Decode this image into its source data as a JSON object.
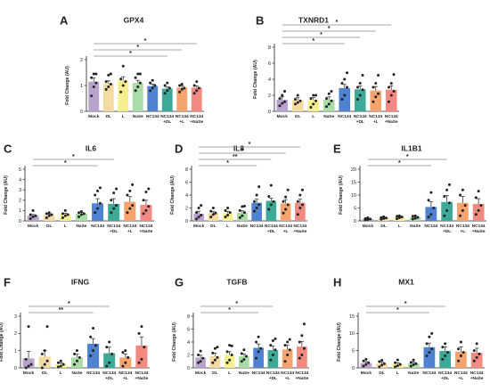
{
  "colors": {
    "bars": [
      "#b9a3cc",
      "#f3dba2",
      "#f5f08f",
      "#a9dca6",
      "#4f83d2",
      "#3daa98",
      "#f4a46c",
      "#f28a82"
    ],
    "ink": "#222222",
    "sig": "#8a8a8a"
  },
  "x_tick_labels": [
    [
      "Mock"
    ],
    [
      "DL"
    ],
    [
      "L"
    ],
    [
      "NaSe"
    ],
    [
      "NC134"
    ],
    [
      "NC134",
      "+DL"
    ],
    [
      "NC134",
      "+L"
    ],
    [
      "NC134",
      "+NaSe"
    ]
  ],
  "chart_data": [
    {
      "panel": "A",
      "type": "bar",
      "title": "GPX4",
      "ylabel": "Fold Change (AU)",
      "categories": [
        "Mock",
        "DL",
        "L",
        "NaSe",
        "NC134",
        "NC134+DL",
        "NC134+L",
        "NC134+NaSe"
      ],
      "values": [
        1.15,
        1.08,
        1.2,
        1.1,
        0.98,
        0.88,
        0.92,
        0.92
      ],
      "errors": [
        0.14,
        0.1,
        0.14,
        0.1,
        0.07,
        0.06,
        0.06,
        0.07
      ],
      "points": [
        [
          0.6,
          0.95,
          1.1,
          1.3,
          1.45,
          1.45
        ],
        [
          0.85,
          0.95,
          1.05,
          1.15,
          1.4,
          1.45
        ],
        [
          0.75,
          1.0,
          1.15,
          1.25,
          1.75
        ],
        [
          0.8,
          0.95,
          1.1,
          1.3,
          1.45,
          1.45
        ],
        [
          0.8,
          0.9,
          1.0,
          1.1,
          1.2
        ],
        [
          0.7,
          0.8,
          0.9,
          1.0,
          1.1
        ],
        [
          0.75,
          0.85,
          0.9,
          1.0,
          1.05
        ],
        [
          0.7,
          0.8,
          0.9,
          1.0,
          1.15
        ]
      ],
      "ylim": [
        0,
        2
      ],
      "yticks": [
        0,
        1,
        2
      ],
      "sig": [
        {
          "from": 0,
          "to": 7,
          "label": "*"
        },
        {
          "from": 0,
          "to": 6,
          "label": "*"
        },
        {
          "from": 0,
          "to": 5,
          "label": "*"
        }
      ]
    },
    {
      "panel": "B",
      "type": "bar",
      "title": "TXNRD1",
      "ylabel": "Fold Change (AU)",
      "categories": [
        "Mock",
        "DL",
        "L",
        "NaSe",
        "NC134",
        "NC134+DL",
        "NC134+L",
        "NC134+NaSe"
      ],
      "values": [
        1.45,
        1.4,
        1.4,
        1.45,
        2.9,
        2.75,
        2.6,
        2.7
      ],
      "errors": [
        0.35,
        0.3,
        0.3,
        0.35,
        0.45,
        0.4,
        0.5,
        0.5
      ],
      "points": [
        [
          0.7,
          1.0,
          1.2,
          1.6,
          2.0,
          2.5
        ],
        [
          0.9,
          1.1,
          1.3,
          1.5,
          2.0
        ],
        [
          0.5,
          0.9,
          1.3,
          1.6,
          2.0,
          2.0
        ],
        [
          0.6,
          0.9,
          1.3,
          1.6,
          2.2,
          2.5
        ],
        [
          1.5,
          2.0,
          3.0,
          3.5,
          4.0,
          4.8
        ],
        [
          1.5,
          2.0,
          2.7,
          3.0,
          3.5,
          4.5
        ],
        [
          1.2,
          1.8,
          2.2,
          3.0,
          3.5,
          4.5
        ],
        [
          1.2,
          2.0,
          2.5,
          3.0,
          3.5,
          4.6
        ]
      ],
      "ylim": [
        0,
        8
      ],
      "yticks": [
        0,
        2,
        4,
        6,
        8
      ],
      "sig": [
        {
          "from": 0,
          "to": 7,
          "label": "*"
        },
        {
          "from": 0,
          "to": 6,
          "label": "*"
        },
        {
          "from": 0,
          "to": 5,
          "label": "*"
        },
        {
          "from": 0,
          "to": 4,
          "label": "*"
        }
      ]
    },
    {
      "panel": "C",
      "type": "bar",
      "title": "IL6",
      "ylabel": "Fold Change (AU)",
      "categories": [
        "Mock",
        "DL",
        "L",
        "NaSe",
        "NC134",
        "NC134+DL",
        "NC134+L",
        "NC134+NaSe"
      ],
      "values": [
        0.5,
        0.55,
        0.65,
        0.7,
        1.7,
        1.65,
        1.85,
        1.55
      ],
      "errors": [
        0.12,
        0.12,
        0.1,
        0.12,
        0.45,
        0.5,
        0.5,
        0.45
      ],
      "points": [
        [
          0.2,
          0.4,
          0.5,
          0.6,
          1.0
        ],
        [
          0.3,
          0.5,
          0.6,
          0.7,
          0.8
        ],
        [
          0.3,
          0.5,
          0.6,
          0.7,
          1.0
        ],
        [
          0.4,
          0.6,
          0.7,
          0.8,
          0.9
        ],
        [
          0.8,
          1.2,
          1.7,
          2.5,
          2.9,
          3.2
        ],
        [
          0.8,
          1.2,
          1.5,
          2.0,
          2.7,
          3.1
        ],
        [
          0.8,
          1.2,
          1.5,
          2.5,
          2.9,
          3.5
        ],
        [
          0.7,
          1.0,
          1.4,
          2.0,
          2.8,
          3.1
        ]
      ],
      "ylim": [
        0,
        5
      ],
      "yticks": [
        0,
        1,
        2,
        3,
        4,
        5
      ],
      "sig": [
        {
          "from": 0,
          "to": 5,
          "label": "*"
        },
        {
          "from": 0,
          "to": 4,
          "label": "*"
        }
      ]
    },
    {
      "panel": "D",
      "type": "bar",
      "title": "IL8",
      "ylabel": "Fold Change (AU)",
      "categories": [
        "Mock",
        "DL",
        "L",
        "NaSe",
        "NC134",
        "NC134+DL",
        "NC134+L",
        "NC134+NaSe"
      ],
      "values": [
        1.1,
        1.2,
        1.2,
        1.25,
        2.8,
        3.1,
        2.7,
        2.8
      ],
      "errors": [
        0.4,
        0.25,
        0.25,
        0.3,
        0.55,
        0.4,
        0.6,
        0.55
      ],
      "points": [
        [
          0.3,
          0.6,
          0.9,
          1.3,
          2.0,
          2.4
        ],
        [
          0.6,
          1.0,
          1.2,
          1.5,
          2.0
        ],
        [
          0.6,
          0.9,
          1.3,
          1.6,
          2.0
        ],
        [
          0.5,
          0.8,
          1.3,
          1.6,
          2.2,
          2.3
        ],
        [
          1.5,
          2.0,
          2.5,
          3.0,
          4.0,
          5.3
        ],
        [
          1.8,
          2.5,
          3.0,
          3.8,
          5.5
        ],
        [
          1.2,
          1.8,
          2.5,
          3.0,
          3.7,
          4.8
        ],
        [
          1.0,
          2.0,
          2.5,
          3.0,
          4.0,
          4.8
        ]
      ],
      "ylim": [
        0,
        8
      ],
      "yticks": [
        0,
        2,
        4,
        6,
        8
      ],
      "sig": [
        {
          "from": 0,
          "to": 7,
          "label": "*"
        },
        {
          "from": 0,
          "to": 6,
          "label": "*"
        },
        {
          "from": 0,
          "to": 5,
          "label": "**"
        },
        {
          "from": 0,
          "to": 4,
          "label": "*"
        }
      ]
    },
    {
      "panel": "E",
      "type": "bar",
      "title": "IL1B1",
      "ylabel": "Fold Change (AU)",
      "categories": [
        "Mock",
        "DL",
        "L",
        "NaSe",
        "NC134",
        "NC134+DL",
        "NC134+L",
        "NC134+NaSe"
      ],
      "values": [
        0.7,
        1.1,
        1.4,
        1.4,
        5.4,
        7.3,
        7.0,
        6.6
      ],
      "errors": [
        0.2,
        0.3,
        0.3,
        0.35,
        2.0,
        2.5,
        2.5,
        2.0
      ],
      "points": [
        [
          0.3,
          0.5,
          0.7,
          0.9,
          1.2
        ],
        [
          0.6,
          0.9,
          1.1,
          1.3,
          1.6
        ],
        [
          0.8,
          1.2,
          1.5,
          1.8,
          2.0
        ],
        [
          0.7,
          1.0,
          1.4,
          1.8,
          2.0
        ],
        [
          1.5,
          2.5,
          5.0,
          8.0,
          11.0
        ],
        [
          2.0,
          4.0,
          7.0,
          9.5,
          12.0,
          14.0
        ],
        [
          2.0,
          4.0,
          6.0,
          10.0,
          12.0
        ],
        [
          2.5,
          4.0,
          6.0,
          9.0,
          11.5
        ]
      ],
      "ylim": [
        0,
        20
      ],
      "yticks": [
        0,
        5,
        10,
        15,
        20
      ],
      "sig": [
        {
          "from": 0,
          "to": 5,
          "label": "*"
        },
        {
          "from": 0,
          "to": 4,
          "label": "*"
        }
      ]
    },
    {
      "panel": "F",
      "type": "bar",
      "title": "IFNG",
      "ylabel": "Fold Change (AU)",
      "categories": [
        "Mock",
        "DL",
        "L",
        "NaSe",
        "NC134",
        "NC134+DL",
        "NC134+L",
        "NC134+NaSe"
      ],
      "values": [
        0.55,
        0.65,
        0.2,
        0.6,
        1.4,
        0.85,
        0.6,
        1.3
      ],
      "errors": [
        0.4,
        0.35,
        0.08,
        0.2,
        0.3,
        0.35,
        0.2,
        0.5
      ],
      "points": [
        [
          0.0,
          0.1,
          0.2,
          0.5,
          2.4
        ],
        [
          0.0,
          0.2,
          0.4,
          0.8,
          1.0,
          2.4
        ],
        [
          0.05,
          0.1,
          0.2,
          0.3,
          0.4
        ],
        [
          0.2,
          0.4,
          0.6,
          0.8,
          1.0
        ],
        [
          0.7,
          1.0,
          1.3,
          1.8,
          2.3
        ],
        [
          0.1,
          0.3,
          0.8,
          1.2,
          1.5
        ],
        [
          0.1,
          0.3,
          0.6,
          0.9,
          1.0
        ],
        [
          0.3,
          0.5,
          1.2,
          2.0,
          2.4
        ]
      ],
      "ylim": [
        0,
        3
      ],
      "yticks": [
        0,
        1,
        2,
        3
      ],
      "sig": [
        {
          "from": 0,
          "to": 5,
          "label": "*"
        },
        {
          "from": 0,
          "to": 4,
          "label": "**"
        }
      ]
    },
    {
      "panel": "G",
      "type": "bar",
      "title": "TGFB",
      "ylabel": "Fold Change (AU)",
      "categories": [
        "Mock",
        "DL",
        "L",
        "NaSe",
        "NC134",
        "NC134+DL",
        "NC134+L",
        "NC134+NaSe"
      ],
      "values": [
        1.6,
        1.85,
        2.0,
        1.8,
        3.1,
        2.75,
        2.85,
        3.3
      ],
      "errors": [
        0.35,
        0.45,
        0.5,
        0.35,
        0.6,
        0.6,
        0.65,
        0.8
      ],
      "points": [
        [
          0.8,
          1.0,
          1.5,
          2.0,
          2.6
        ],
        [
          0.8,
          1.2,
          1.6,
          2.3,
          3.0,
          3.2
        ],
        [
          0.8,
          1.2,
          2.0,
          2.5,
          3.5,
          3.4
        ],
        [
          1.0,
          1.3,
          1.8,
          2.2,
          2.8
        ],
        [
          1.5,
          2.5,
          3.0,
          4.0,
          4.8
        ],
        [
          1.2,
          2.0,
          2.8,
          3.5,
          4.2,
          4.5
        ],
        [
          1.0,
          2.0,
          2.8,
          3.5,
          4.0,
          4.4
        ],
        [
          1.5,
          2.0,
          3.0,
          4.0,
          5.0,
          6.8
        ]
      ],
      "ylim": [
        0,
        8
      ],
      "yticks": [
        0,
        2,
        4,
        6,
        8
      ],
      "sig": [
        {
          "from": 0,
          "to": 5,
          "label": "*"
        },
        {
          "from": 0,
          "to": 4,
          "label": "*"
        }
      ]
    },
    {
      "panel": "H",
      "type": "bar",
      "title": "MX1",
      "ylabel": "Fold Change (AU)",
      "categories": [
        "Mock",
        "DL",
        "L",
        "NaSe",
        "NC134",
        "NC134+DL",
        "NC134+L",
        "NC134+NaSe"
      ],
      "values": [
        1.4,
        1.2,
        1.1,
        1.3,
        6.0,
        4.9,
        4.7,
        4.4
      ],
      "errors": [
        0.4,
        0.4,
        0.35,
        0.45,
        1.2,
        1.2,
        1.4,
        1.3
      ],
      "points": [
        [
          0.5,
          1.0,
          1.5,
          2.0,
          2.5
        ],
        [
          0.3,
          0.8,
          1.2,
          1.8,
          2.2
        ],
        [
          0.3,
          0.6,
          1.0,
          1.5,
          2.3
        ],
        [
          0.5,
          0.9,
          1.2,
          1.6,
          2.3
        ],
        [
          3.5,
          4.5,
          5.5,
          7.0,
          9.0,
          10.0
        ],
        [
          2.5,
          3.5,
          4.5,
          6.0,
          7.0
        ],
        [
          2.0,
          3.5,
          4.5,
          5.5,
          7.5
        ],
        [
          2.0,
          3.0,
          4.0,
          5.0,
          7.0
        ]
      ],
      "ylim": [
        0,
        15
      ],
      "yticks": [
        0,
        5,
        10,
        15
      ],
      "sig": [
        {
          "from": 0,
          "to": 5,
          "label": "*"
        },
        {
          "from": 0,
          "to": 4,
          "label": "*"
        }
      ]
    }
  ]
}
